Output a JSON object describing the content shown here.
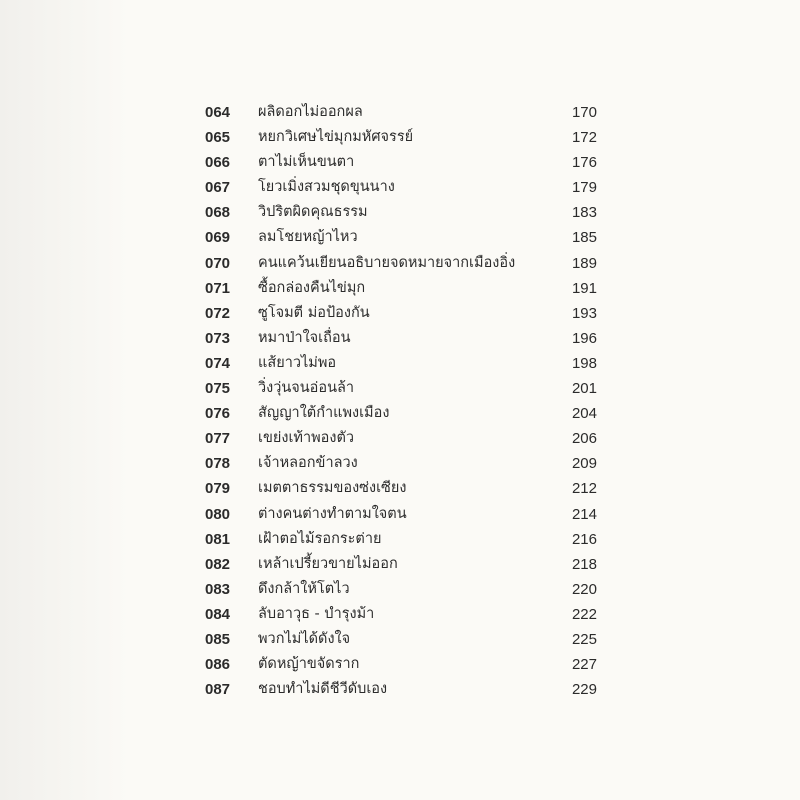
{
  "toc": [
    {
      "num": "064",
      "title": "ผลิดอกไม่ออกผล",
      "page": "170"
    },
    {
      "num": "065",
      "title": "หยกวิเศษไข่มุกมหัศจรรย์",
      "page": "172"
    },
    {
      "num": "066",
      "title": "ตาไม่เห็นขนตา",
      "page": "176"
    },
    {
      "num": "067",
      "title": "โยวเมิ่งสวมชุดขุนนาง",
      "page": "179"
    },
    {
      "num": "068",
      "title": "วิปริตผิดคุณธรรม",
      "page": "183"
    },
    {
      "num": "069",
      "title": "ลมโชยหญ้าไหว",
      "page": "185"
    },
    {
      "num": "070",
      "title": "คนแคว้นเยียนอธิบายจดหมายจากเมืองอิ่ง",
      "page": "189"
    },
    {
      "num": "071",
      "title": "ซื้อกล่องคืนไข่มุก",
      "page": "191"
    },
    {
      "num": "072",
      "title": "ซูโจมตี ม่อป้องกัน",
      "page": "193"
    },
    {
      "num": "073",
      "title": "หมาป่าใจเถื่อน",
      "page": "196"
    },
    {
      "num": "074",
      "title": "แส้ยาวไม่พอ",
      "page": "198"
    },
    {
      "num": "075",
      "title": "วิ่งวุ่นจนอ่อนล้า",
      "page": "201"
    },
    {
      "num": "076",
      "title": "สัญญาใต้กำแพงเมือง",
      "page": "204"
    },
    {
      "num": "077",
      "title": "เขย่งเท้าพองตัว",
      "page": "206"
    },
    {
      "num": "078",
      "title": "เจ้าหลอกข้าลวง",
      "page": "209"
    },
    {
      "num": "079",
      "title": "เมตตาธรรมของซ่งเซียง",
      "page": "212"
    },
    {
      "num": "080",
      "title": "ต่างคนต่างทำตามใจตน",
      "page": "214"
    },
    {
      "num": "081",
      "title": "เฝ้าตอไม้รอกระต่าย",
      "page": "216"
    },
    {
      "num": "082",
      "title": "เหล้าเปรี้ยวขายไม่ออก",
      "page": "218"
    },
    {
      "num": "083",
      "title": "ดึงกล้าให้โตไว",
      "page": "220"
    },
    {
      "num": "084",
      "title": "ลับอาวุธ - บำรุงม้า",
      "page": "222"
    },
    {
      "num": "085",
      "title": "พวกไม่ได้ดังใจ",
      "page": "225"
    },
    {
      "num": "086",
      "title": "ตัดหญ้าขจัดราก",
      "page": "227"
    },
    {
      "num": "087",
      "title": "ชอบทำไม่ดีชีวีดับเอง",
      "page": "229"
    }
  ]
}
